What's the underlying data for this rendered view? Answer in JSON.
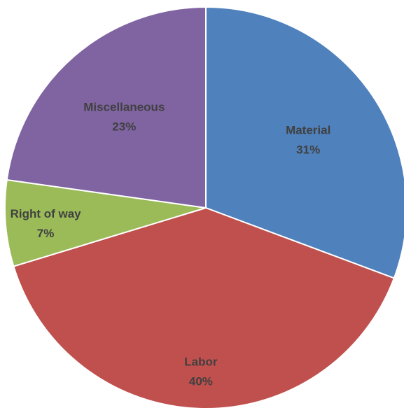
{
  "chart_data": {
    "type": "pie",
    "title": "",
    "categories": [
      "Material",
      "Labor",
      "Right of way",
      "Miscellaneous"
    ],
    "values": [
      31,
      40,
      7,
      23
    ],
    "labels": [
      "31%",
      "40%",
      "7%",
      "23%"
    ],
    "colors": [
      "#4f81bd",
      "#c0504d",
      "#9bbb59",
      "#8064a2"
    ],
    "start_angle_deg": 0,
    "direction": "clockwise",
    "legend": "none"
  }
}
